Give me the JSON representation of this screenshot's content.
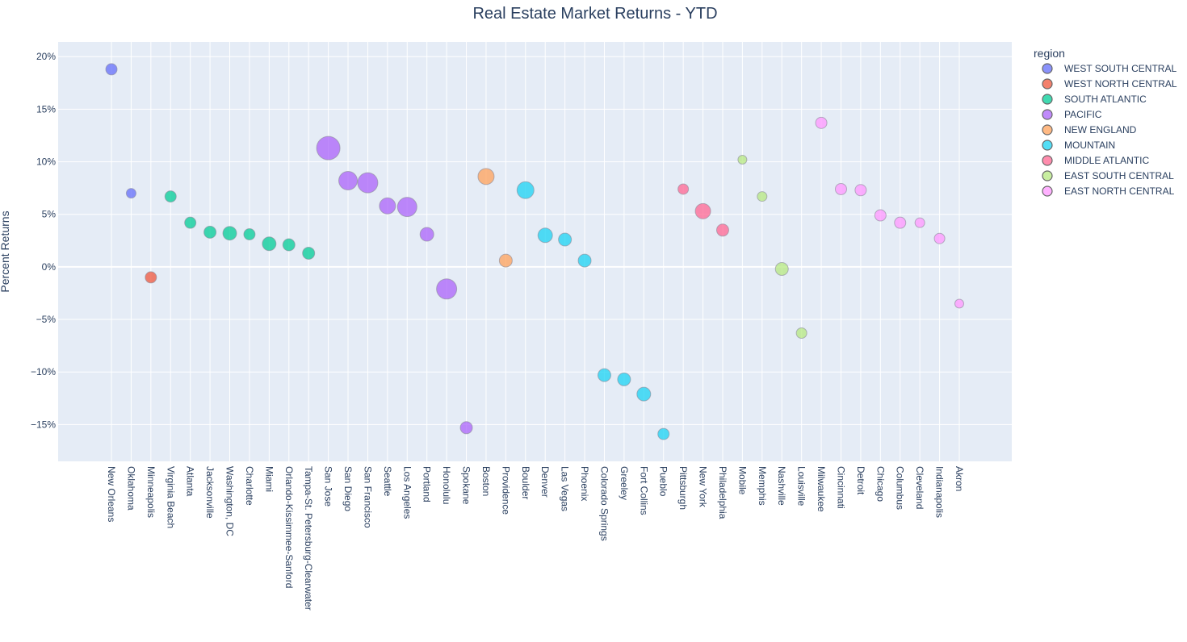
{
  "chart_data": {
    "type": "scatter",
    "title": "Real Estate Market Returns - YTD",
    "xlabel": "",
    "ylabel": "Percent Returns",
    "ylim": [
      -18.5,
      21.4
    ],
    "yticks": [
      20,
      15,
      10,
      5,
      0,
      -5,
      -10,
      -15
    ],
    "ytick_labels": [
      "20%",
      "15%",
      "10%",
      "5%",
      "0%",
      "−5%",
      "−10%",
      "−15%"
    ],
    "grid": true,
    "legend": {
      "title": "region",
      "placement": "right"
    },
    "background": "#e5ecf6",
    "series": [
      {
        "name": "WEST SOUTH CENTRAL",
        "color": "#636efa",
        "points": [
          {
            "x": "New Orleans",
            "y": 18.8,
            "size": 14
          },
          {
            "x": "Oklahoma",
            "y": 7.0,
            "size": 12
          }
        ]
      },
      {
        "name": "WEST NORTH CENTRAL",
        "color": "#EF553B",
        "points": [
          {
            "x": "Minneapolis",
            "y": -1.0,
            "size": 14
          }
        ]
      },
      {
        "name": "SOUTH ATLANTIC",
        "color": "#00cc96",
        "points": [
          {
            "x": "Virginia Beach",
            "y": 6.7,
            "size": 14
          },
          {
            "x": "Atlanta",
            "y": 4.2,
            "size": 14
          },
          {
            "x": "Jacksonville",
            "y": 3.3,
            "size": 15
          },
          {
            "x": "Washington, DC",
            "y": 3.2,
            "size": 17
          },
          {
            "x": "Charlotte",
            "y": 3.1,
            "size": 14
          },
          {
            "x": "Miami",
            "y": 2.2,
            "size": 17
          },
          {
            "x": "Orlando-Kissimmee-Sanford",
            "y": 2.1,
            "size": 15
          },
          {
            "x": "Tampa-St. Petersburg-Clearwater",
            "y": 1.3,
            "size": 15
          }
        ]
      },
      {
        "name": "PACIFIC",
        "color": "#ab63fa",
        "points": [
          {
            "x": "San Jose",
            "y": 11.3,
            "size": 29
          },
          {
            "x": "San Diego",
            "y": 8.2,
            "size": 23
          },
          {
            "x": "San Francisco",
            "y": 8.0,
            "size": 25
          },
          {
            "x": "Seattle",
            "y": 5.8,
            "size": 20
          },
          {
            "x": "Los Angeles",
            "y": 5.7,
            "size": 24
          },
          {
            "x": "Portland",
            "y": 3.1,
            "size": 17
          },
          {
            "x": "Honolulu",
            "y": -2.1,
            "size": 25
          },
          {
            "x": "Spokane",
            "y": -15.3,
            "size": 15
          }
        ]
      },
      {
        "name": "NEW ENGLAND",
        "color": "#FFA15A",
        "points": [
          {
            "x": "Boston",
            "y": 8.6,
            "size": 20
          },
          {
            "x": "Providence",
            "y": 0.6,
            "size": 16
          }
        ]
      },
      {
        "name": "MOUNTAIN",
        "color": "#19d3f3",
        "points": [
          {
            "x": "Boulder",
            "y": 7.3,
            "size": 21
          },
          {
            "x": "Denver",
            "y": 3.0,
            "size": 18
          },
          {
            "x": "Las Vegas",
            "y": 2.6,
            "size": 16
          },
          {
            "x": "Phoenix",
            "y": 0.6,
            "size": 16
          },
          {
            "x": "Colorado Springs",
            "y": -10.3,
            "size": 16
          },
          {
            "x": "Greeley",
            "y": -10.7,
            "size": 16
          },
          {
            "x": "Fort Collins",
            "y": -12.1,
            "size": 17
          },
          {
            "x": "Pueblo",
            "y": -15.9,
            "size": 14
          }
        ]
      },
      {
        "name": "MIDDLE ATLANTIC",
        "color": "#FF6692",
        "points": [
          {
            "x": "Pittsburgh",
            "y": 7.4,
            "size": 13
          },
          {
            "x": "New York",
            "y": 5.3,
            "size": 19
          },
          {
            "x": "Philadelphia",
            "y": 3.5,
            "size": 15
          }
        ]
      },
      {
        "name": "EAST SOUTH CENTRAL",
        "color": "#B6E880",
        "points": [
          {
            "x": "Mobile",
            "y": 10.2,
            "size": 11
          },
          {
            "x": "Memphis",
            "y": 6.7,
            "size": 12
          },
          {
            "x": "Nashville",
            "y": -0.2,
            "size": 16
          },
          {
            "x": "Louisville",
            "y": -6.3,
            "size": 13
          }
        ]
      },
      {
        "name": "EAST NORTH CENTRAL",
        "color": "#FF97FF",
        "points": [
          {
            "x": "Milwaukee",
            "y": 13.7,
            "size": 14
          },
          {
            "x": "Cincinnati",
            "y": 7.4,
            "size": 14
          },
          {
            "x": "Detroit",
            "y": 7.3,
            "size": 14
          },
          {
            "x": "Chicago",
            "y": 4.9,
            "size": 14
          },
          {
            "x": "Columbus",
            "y": 4.2,
            "size": 14
          },
          {
            "x": "Cleveland",
            "y": 4.2,
            "size": 12
          },
          {
            "x": "Indianapolis",
            "y": 2.7,
            "size": 13
          },
          {
            "x": "Akron",
            "y": -3.5,
            "size": 11
          }
        ]
      }
    ]
  }
}
